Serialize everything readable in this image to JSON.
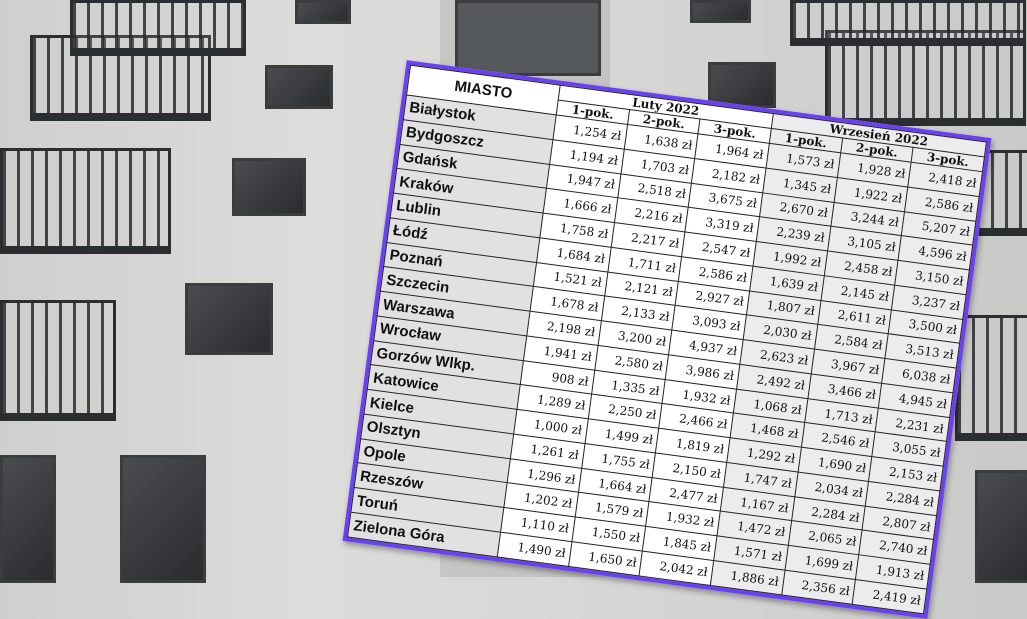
{
  "table": {
    "city_header": "MIASTO",
    "groups": [
      "Luty 2022",
      "Wrzesień 2022"
    ],
    "sub_headers": [
      "1-pok.",
      "2-pok.",
      "3-pok."
    ],
    "rows": [
      {
        "city": "Białystok",
        "feb": [
          "1,254 zł",
          "1,638 zł",
          "1,964 zł"
        ],
        "sep": [
          "1,573 zł",
          "1,928 zł",
          "2,418 zł"
        ]
      },
      {
        "city": "Bydgoszcz",
        "feb": [
          "1,194 zł",
          "1,703 zł",
          "2,182 zł"
        ],
        "sep": [
          "1,345 zł",
          "1,922 zł",
          "2,586 zł"
        ]
      },
      {
        "city": "Gdańsk",
        "feb": [
          "1,947 zł",
          "2,518 zł",
          "3,675 zł"
        ],
        "sep": [
          "2,670 zł",
          "3,244 zł",
          "5,207 zł"
        ]
      },
      {
        "city": "Kraków",
        "feb": [
          "1,666 zł",
          "2,216 zł",
          "3,319 zł"
        ],
        "sep": [
          "2,239 zł",
          "3,105 zł",
          "4,596 zł"
        ]
      },
      {
        "city": "Lublin",
        "feb": [
          "1,758 zł",
          "2,217 zł",
          "2,547 zł"
        ],
        "sep": [
          "1,992 zł",
          "2,458 zł",
          "3,150 zł"
        ]
      },
      {
        "city": "Łódź",
        "feb": [
          "1,684 zł",
          "1,711 zł",
          "2,586 zł"
        ],
        "sep": [
          "1,639 zł",
          "2,145 zł",
          "3,237 zł"
        ]
      },
      {
        "city": "Poznań",
        "feb": [
          "1,521 zł",
          "2,121 zł",
          "2,927 zł"
        ],
        "sep": [
          "1,807 zł",
          "2,611 zł",
          "3,500 zł"
        ]
      },
      {
        "city": "Szczecin",
        "feb": [
          "1,678 zł",
          "2,133 zł",
          "3,093 zł"
        ],
        "sep": [
          "2,030 zł",
          "2,584 zł",
          "3,513 zł"
        ]
      },
      {
        "city": "Warszawa",
        "feb": [
          "2,198 zł",
          "3,200 zł",
          "4,937 zł"
        ],
        "sep": [
          "2,623 zł",
          "3,967 zł",
          "6,038 zł"
        ]
      },
      {
        "city": "Wrocław",
        "feb": [
          "1,941 zł",
          "2,580 zł",
          "3,986 zł"
        ],
        "sep": [
          "2,492 zł",
          "3,466 zł",
          "4,945 zł"
        ]
      },
      {
        "city": "Gorzów Wlkp.",
        "feb": [
          "908 zł",
          "1,335 zł",
          "1,932 zł"
        ],
        "sep": [
          "1,068 zł",
          "1,713 zł",
          "2,231 zł"
        ]
      },
      {
        "city": "Katowice",
        "feb": [
          "1,289 zł",
          "2,250 zł",
          "2,466 zł"
        ],
        "sep": [
          "1,468 zł",
          "2,546 zł",
          "3,055 zł"
        ]
      },
      {
        "city": "Kielce",
        "feb": [
          "1,000 zł",
          "1,499 zł",
          "1,819 zł"
        ],
        "sep": [
          "1,292 zł",
          "1,690 zł",
          "2,153 zł"
        ]
      },
      {
        "city": "Olsztyn",
        "feb": [
          "1,261 zł",
          "1,755 zł",
          "2,150 zł"
        ],
        "sep": [
          "1,747 zł",
          "2,034 zł",
          "2,284 zł"
        ]
      },
      {
        "city": "Opole",
        "feb": [
          "1,296 zł",
          "1,664 zł",
          "2,477 zł"
        ],
        "sep": [
          "1,167 zł",
          "2,284 zł",
          "2,807 zł"
        ]
      },
      {
        "city": "Rzeszów",
        "feb": [
          "1,202 zł",
          "1,579 zł",
          "1,932 zł"
        ],
        "sep": [
          "1,472 zł",
          "2,065 zł",
          "2,740 zł"
        ]
      },
      {
        "city": "Toruń",
        "feb": [
          "1,110 zł",
          "1,550 zł",
          "1,845 zł"
        ],
        "sep": [
          "1,571 zł",
          "1,699 zł",
          "1,913 zł"
        ]
      },
      {
        "city": "Zielona Góra",
        "feb": [
          "1,490 zł",
          "1,650 zł",
          "2,042 zł"
        ],
        "sep": [
          "1,886 zł",
          "2,356 zł",
          "2,419 zł"
        ]
      }
    ]
  },
  "colors": {
    "border": "#6b3ff2",
    "city_column": "#e1e1e1",
    "sep_columns": "#ececec"
  }
}
